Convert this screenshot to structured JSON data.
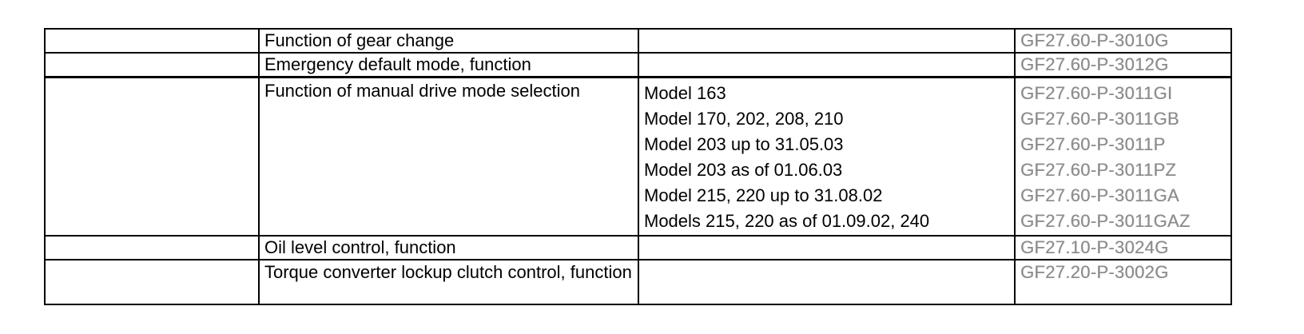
{
  "page": {
    "background": "#ffffff"
  },
  "table": {
    "border_color": "#000000",
    "text_color": "#000000",
    "link_color": "#8c8c8c",
    "rows": [
      {
        "function": "Function of gear change",
        "entries": [
          {
            "model": "",
            "code": "GF27.60-P-3010G"
          }
        ]
      },
      {
        "function": "Emergency default mode, function",
        "entries": [
          {
            "model": "",
            "code": "GF27.60-P-3012G"
          }
        ]
      },
      {
        "function": "Function of manual drive mode selection",
        "entries": [
          {
            "model": "Model 163",
            "code": "GF27.60-P-3011GI"
          },
          {
            "model": "Model 170, 202, 208, 210",
            "code": "GF27.60-P-3011GB"
          },
          {
            "model": "Model 203 up to 31.05.03",
            "code": "GF27.60-P-3011P"
          },
          {
            "model": "Model 203 as of 01.06.03",
            "code": "GF27.60-P-3011PZ"
          },
          {
            "model": "Model 215, 220 up to 31.08.02",
            "code": "GF27.60-P-3011GA"
          },
          {
            "model": "Models 215, 220 as of 01.09.02, 240",
            "code": "GF27.60-P-3011GAZ"
          }
        ]
      },
      {
        "function": "Oil level control, function",
        "entries": [
          {
            "model": "",
            "code": "GF27.10-P-3024G"
          }
        ]
      },
      {
        "function": "Torque converter lockup clutch control, function",
        "entries": [
          {
            "model": "",
            "code": "GF27.20-P-3002G"
          }
        ]
      }
    ]
  }
}
